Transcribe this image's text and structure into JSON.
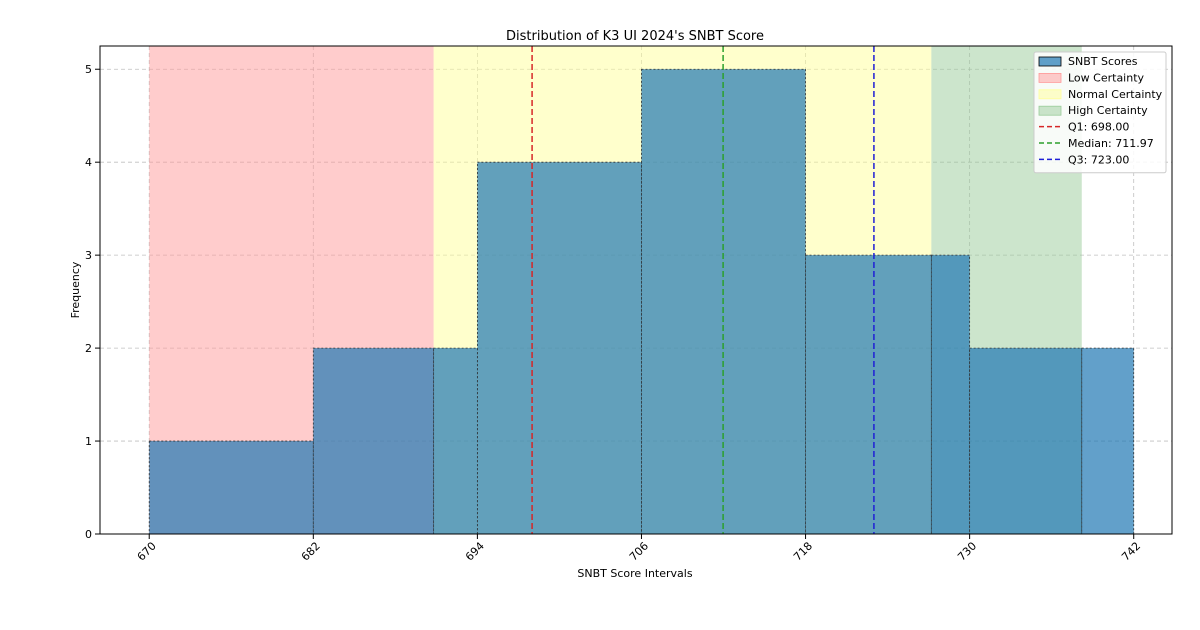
{
  "chart_data": {
    "type": "bar",
    "title": "Distribution of K3 UI 2024's SNBT Score",
    "xlabel": "SNBT Score Intervals",
    "ylabel": "Frequency",
    "xlim": [
      666.4,
      744.8
    ],
    "ylim": [
      0,
      5.25
    ],
    "grid": true,
    "legend_placement": "top-right",
    "x_ticks": [
      "670",
      "682",
      "694",
      "706",
      "718",
      "730",
      "742"
    ],
    "y_ticks": [
      "0",
      "1",
      "2",
      "3",
      "4",
      "5"
    ],
    "histogram": {
      "name": "SNBT Scores",
      "bin_edges": [
        670,
        682,
        690.8,
        694,
        706,
        718,
        727.2,
        730,
        738.2,
        742
      ],
      "counts": [
        1,
        2,
        2,
        4,
        5,
        3,
        3,
        2,
        2
      ],
      "color": "#1f77b4"
    },
    "bands": [
      {
        "name": "Low Certainty",
        "from": 670,
        "to": 690.8,
        "color": "#ff9999"
      },
      {
        "name": "Normal Certainty",
        "from": 690.8,
        "to": 727.2,
        "color": "#ffff99"
      },
      {
        "name": "High Certainty",
        "from": 727.2,
        "to": 738.2,
        "color": "#99cc99"
      }
    ],
    "lines": [
      {
        "name": "Q1: 698.00",
        "x": 698.0,
        "color": "#d62728"
      },
      {
        "name": "Median: 711.97",
        "x": 711.97,
        "color": "#2ca02c"
      },
      {
        "name": "Q3: 723.00",
        "x": 723.0,
        "color": "#1f1fd6"
      }
    ]
  }
}
